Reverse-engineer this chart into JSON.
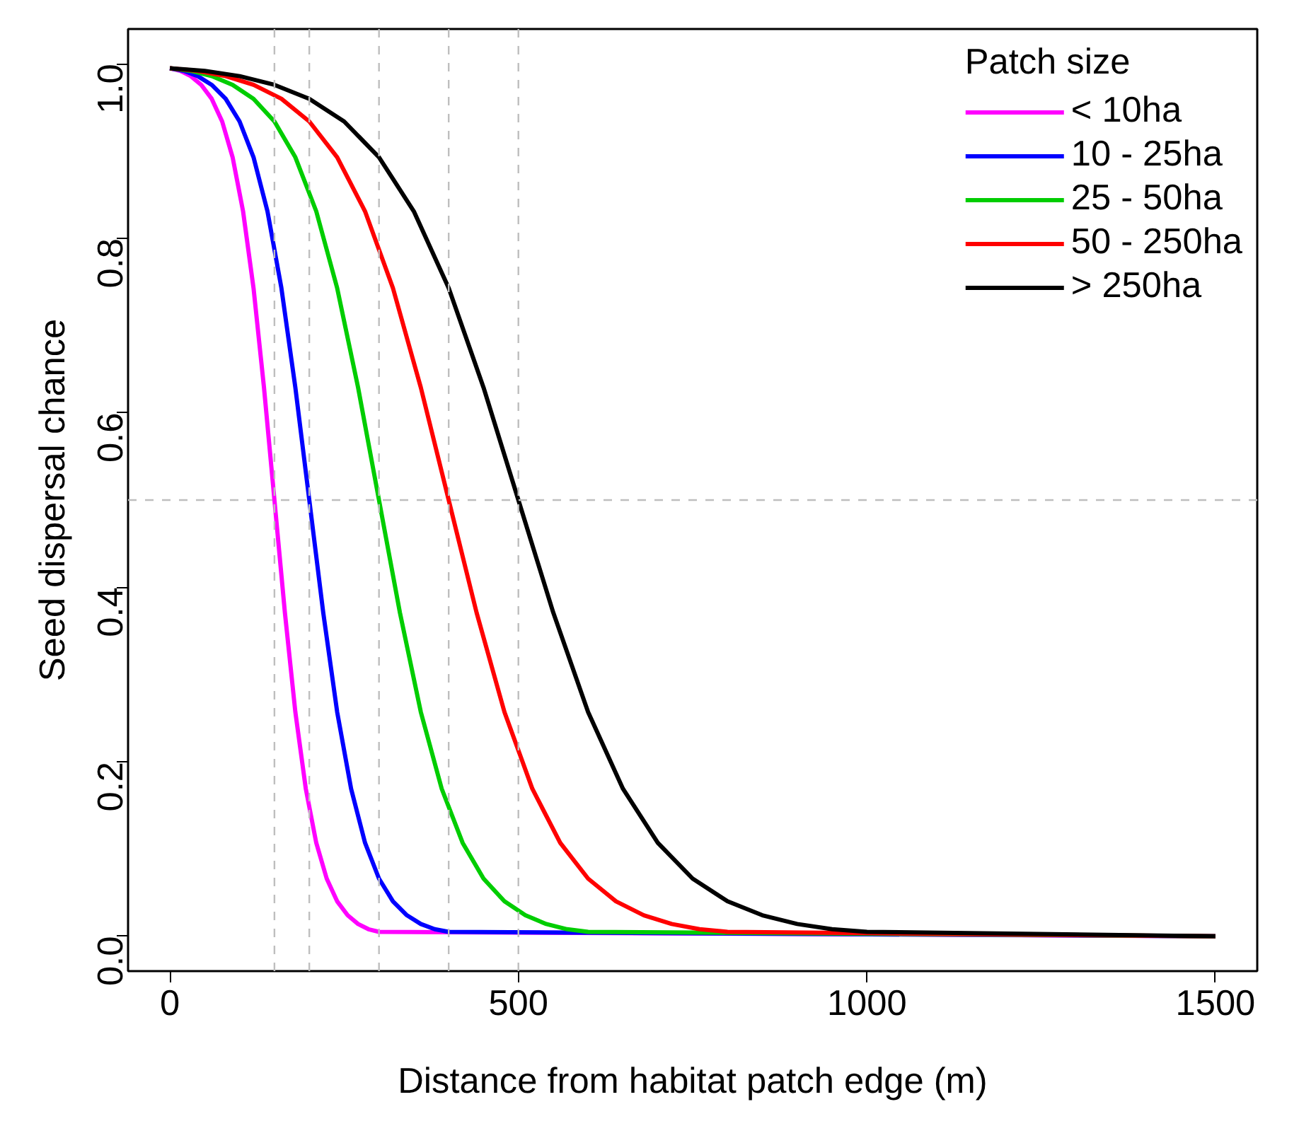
{
  "chart_data": {
    "type": "line",
    "xlabel": "Distance from habitat patch edge (m)",
    "ylabel": "Seed dispersal chance",
    "legend_title": "Patch size",
    "legend": "top right",
    "line_style": "solid",
    "xlim": [
      -60,
      1560
    ],
    "ylim": [
      -0.04,
      1.04
    ],
    "xticks": [
      0,
      500,
      1000,
      1500
    ],
    "yticks": [
      {
        "value": 0,
        "label": "0.0"
      },
      {
        "value": 0.2,
        "label": "0.2"
      },
      {
        "value": 0.4,
        "label": "0.4"
      },
      {
        "value": 0.6,
        "label": "0.6"
      },
      {
        "value": 0.8,
        "label": "0.8"
      },
      {
        "value": 1,
        "label": "1.0"
      }
    ],
    "ref_lines": [
      {
        "axis": "x",
        "value": 150,
        "color": "#bebebe",
        "line_style": "dashed"
      },
      {
        "axis": "x",
        "value": 200,
        "color": "#bebebe",
        "line_style": "dashed"
      },
      {
        "axis": "x",
        "value": 300,
        "color": "#bebebe",
        "line_style": "dashed"
      },
      {
        "axis": "x",
        "value": 400,
        "color": "#bebebe",
        "line_style": "dashed"
      },
      {
        "axis": "x",
        "value": 500,
        "color": "#bebebe",
        "line_style": "dashed"
      },
      {
        "axis": "y",
        "value": 0.5,
        "color": "#bebebe",
        "line_style": "dashed"
      }
    ],
    "series": [
      {
        "name": "< 10ha",
        "color": "#ff00ff",
        "x": [
          0,
          15,
          30,
          45,
          60,
          75,
          90,
          105,
          120,
          135,
          150,
          165,
          180,
          195,
          210,
          225,
          240,
          255,
          270,
          285,
          300,
          1500
        ],
        "values": [
          0.995,
          0.992,
          0.986,
          0.976,
          0.96,
          0.934,
          0.893,
          0.831,
          0.743,
          0.629,
          0.5,
          0.371,
          0.257,
          0.169,
          0.107,
          0.066,
          0.04,
          0.024,
          0.014,
          0.008,
          0.005,
          0.0
        ]
      },
      {
        "name": "10 - 25ha",
        "color": "#0000ff",
        "x": [
          0,
          20,
          40,
          60,
          80,
          100,
          120,
          140,
          160,
          180,
          200,
          220,
          240,
          260,
          280,
          300,
          320,
          340,
          360,
          380,
          400,
          1500
        ],
        "values": [
          0.995,
          0.992,
          0.986,
          0.976,
          0.96,
          0.934,
          0.893,
          0.831,
          0.743,
          0.629,
          0.5,
          0.371,
          0.257,
          0.169,
          0.107,
          0.066,
          0.04,
          0.024,
          0.014,
          0.008,
          0.005,
          0.0
        ]
      },
      {
        "name": "25 - 50ha",
        "color": "#00cd00",
        "x": [
          0,
          30,
          60,
          90,
          120,
          150,
          180,
          210,
          240,
          270,
          300,
          330,
          360,
          390,
          420,
          450,
          480,
          510,
          540,
          570,
          600,
          1500
        ],
        "values": [
          0.995,
          0.992,
          0.986,
          0.976,
          0.96,
          0.934,
          0.893,
          0.831,
          0.743,
          0.629,
          0.5,
          0.371,
          0.257,
          0.169,
          0.107,
          0.066,
          0.04,
          0.024,
          0.014,
          0.008,
          0.005,
          0.0
        ]
      },
      {
        "name": "50 - 250ha",
        "color": "#ff0000",
        "x": [
          0,
          40,
          80,
          120,
          160,
          200,
          240,
          280,
          320,
          360,
          400,
          440,
          480,
          520,
          560,
          600,
          640,
          680,
          720,
          760,
          800,
          1500
        ],
        "values": [
          0.995,
          0.992,
          0.986,
          0.976,
          0.96,
          0.934,
          0.893,
          0.831,
          0.743,
          0.629,
          0.5,
          0.371,
          0.257,
          0.169,
          0.107,
          0.066,
          0.04,
          0.024,
          0.014,
          0.008,
          0.005,
          0.0
        ]
      },
      {
        "name": "> 250ha",
        "color": "#000000",
        "x": [
          0,
          50,
          100,
          150,
          200,
          250,
          300,
          350,
          400,
          450,
          500,
          550,
          600,
          650,
          700,
          750,
          800,
          850,
          900,
          950,
          1000,
          1500
        ],
        "values": [
          0.995,
          0.992,
          0.986,
          0.976,
          0.96,
          0.934,
          0.893,
          0.831,
          0.743,
          0.629,
          0.5,
          0.371,
          0.257,
          0.169,
          0.107,
          0.066,
          0.04,
          0.024,
          0.014,
          0.008,
          0.005,
          0.0
        ]
      }
    ]
  }
}
